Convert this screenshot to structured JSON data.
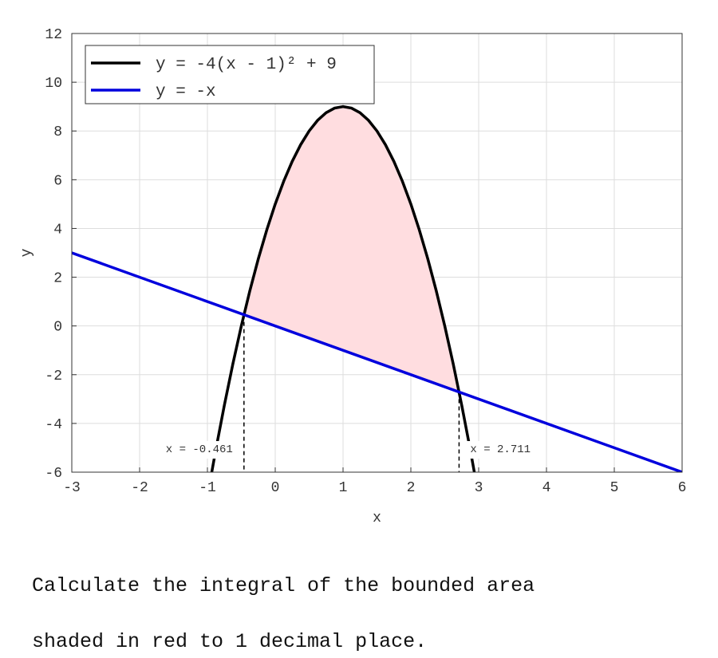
{
  "chart_data": {
    "type": "line",
    "xlabel": "x",
    "ylabel": "y",
    "xlim": [
      -3,
      6
    ],
    "ylim": [
      -6,
      12
    ],
    "xticks": [
      -3,
      -2,
      -1,
      0,
      1,
      2,
      3,
      4,
      5,
      6
    ],
    "yticks": [
      -6,
      -4,
      -2,
      0,
      2,
      4,
      6,
      8,
      10,
      12
    ],
    "grid": true,
    "legend": "upper left",
    "series": [
      {
        "name": "y = -4(x - 1)² + 9",
        "color": "#000000",
        "x": [
          -0.936,
          -0.875,
          -0.75,
          -0.625,
          -0.5,
          -0.375,
          -0.25,
          -0.125,
          0,
          0.125,
          0.25,
          0.375,
          0.5,
          0.625,
          0.75,
          0.875,
          1,
          1.125,
          1.25,
          1.375,
          1.5,
          1.625,
          1.75,
          1.875,
          2,
          2.125,
          2.25,
          2.375,
          2.5,
          2.625,
          2.75,
          2.875,
          2.936
        ],
        "values": [
          -6,
          -5.0625,
          -3.25,
          -1.5625,
          0,
          1.4375,
          2.75,
          3.9375,
          5,
          5.9375,
          6.75,
          7.4375,
          8,
          8.4375,
          8.75,
          8.9375,
          9,
          8.9375,
          8.75,
          8.4375,
          8,
          7.4375,
          6.75,
          5.9375,
          5,
          3.9375,
          2.75,
          1.4375,
          0,
          -1.5625,
          -3.25,
          -5.0625,
          -6
        ]
      },
      {
        "name": "y = -x",
        "color": "#0000dd",
        "x": [
          -3,
          6
        ],
        "values": [
          3,
          -6
        ]
      }
    ],
    "shade_color": "#ffdde0",
    "intersections": [
      {
        "x": -0.461,
        "y": 0.461,
        "label": "x = -0.461"
      },
      {
        "x": 2.711,
        "y": -2.711,
        "label": "x = 2.711"
      }
    ]
  },
  "question": [
    "Calculate the integral of the bounded area",
    "shaded in red to 1 decimal place."
  ]
}
